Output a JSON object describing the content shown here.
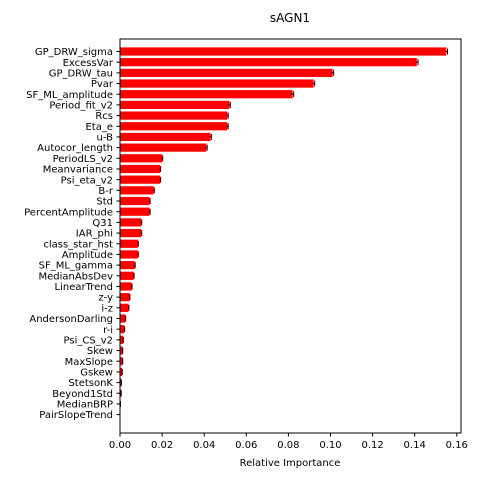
{
  "chart_data": {
    "type": "bar",
    "orientation": "horizontal",
    "title": "sAGN1",
    "xlabel": "Relative Importance",
    "ylabel": "",
    "xlim": [
      0,
      0.162
    ],
    "xticks": [
      "0.00",
      "0.02",
      "0.04",
      "0.06",
      "0.08",
      "0.10",
      "0.12",
      "0.14",
      "0.16"
    ],
    "bar_color": "#ff0000",
    "error_color": "#000000",
    "categories": [
      "GP_DRW_sigma",
      "ExcessVar",
      "GP_DRW_tau",
      "Pvar",
      "SF_ML_amplitude",
      "Period_fit_v2",
      "Rcs",
      "Eta_e",
      "u-B",
      "Autocor_length",
      "PeriodLS_v2",
      "Meanvariance",
      "Psi_eta_v2",
      "B-r",
      "Std",
      "PercentAmplitude",
      "Q31",
      "IAR_phi",
      "class_star_hst",
      "Amplitude",
      "SF_ML_gamma",
      "MedianAbsDev",
      "LinearTrend",
      "z-y",
      "i-z",
      "AndersonDarling",
      "r-i",
      "Psi_CS_v2",
      "Skew",
      "MaxSlope",
      "Gskew",
      "StetsonK",
      "Beyond1Std",
      "MedianBRP",
      "PairSlopeTrend"
    ],
    "values": [
      0.155,
      0.141,
      0.101,
      0.092,
      0.082,
      0.052,
      0.051,
      0.051,
      0.043,
      0.041,
      0.02,
      0.019,
      0.019,
      0.016,
      0.014,
      0.014,
      0.01,
      0.01,
      0.0085,
      0.0085,
      0.007,
      0.0065,
      0.0055,
      0.0045,
      0.004,
      0.0025,
      0.002,
      0.0015,
      0.0012,
      0.0012,
      0.001,
      0.0006,
      0.0005,
      0.0001,
      0.0
    ],
    "errors": [
      0.0006,
      0.0006,
      0.0005,
      0.0005,
      0.0005,
      0.0004,
      0.0004,
      0.0004,
      0.0004,
      0.0004,
      0.0003,
      0.0003,
      0.0003,
      0.0003,
      0.0003,
      0.0003,
      0.0003,
      0.0003,
      0.0002,
      0.0002,
      0.0002,
      0.0002,
      0.0002,
      0.0002,
      0.0002,
      0.0002,
      0.0002,
      0.0001,
      0.0001,
      0.0001,
      0.0001,
      0.0001,
      0.0001,
      0.0001,
      0.0
    ],
    "grid": false,
    "legend": "none"
  }
}
